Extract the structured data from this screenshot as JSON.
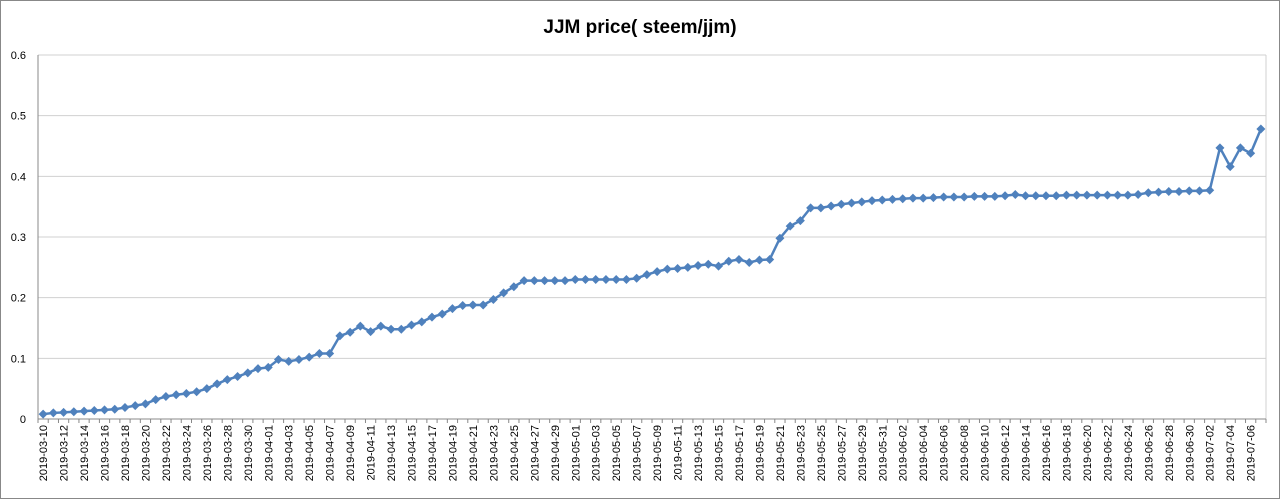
{
  "chart_data": {
    "type": "line",
    "title": "JJM price( steem/jjm)",
    "categories": [
      "2019-03-10",
      null,
      "2019-03-12",
      null,
      "2019-03-14",
      null,
      "2019-03-16",
      null,
      "2019-03-18",
      null,
      "2019-03-20",
      null,
      "2019-03-22",
      null,
      "2019-03-24",
      null,
      "2019-03-26",
      null,
      "2019-03-28",
      null,
      "2019-03-30",
      null,
      "2019-04-01",
      null,
      "2019-04-03",
      null,
      "2019-04-05",
      null,
      "2019-04-07",
      null,
      "2019-04-09",
      null,
      "2019-04-11",
      null,
      "2019-04-13",
      null,
      "2019-04-15",
      null,
      "2019-04-17",
      null,
      "2019-04-19",
      null,
      "2019-04-21",
      null,
      "2019-04-23",
      null,
      "2019-04-25",
      null,
      "2019-04-27",
      null,
      "2019-04-29",
      null,
      "2019-05-01",
      null,
      "2019-05-03",
      null,
      "2019-05-05",
      null,
      "2019-05-07",
      null,
      "2019-05-09",
      null,
      "2019-05-11",
      null,
      "2019-05-13",
      null,
      "2019-05-15",
      null,
      "2019-05-17",
      null,
      "2019-05-19",
      null,
      "2019-05-21",
      null,
      "2019-05-23",
      null,
      "2019-05-25",
      null,
      "2019-05-27",
      null,
      "2019-05-29",
      null,
      "2019-05-31",
      null,
      "2019-06-02",
      null,
      "2019-06-04",
      null,
      "2019-06-06",
      null,
      "2019-06-08",
      null,
      "2019-06-10",
      null,
      "2019-06-12",
      null,
      "2019-06-14",
      null,
      "2019-06-16",
      null,
      "2019-06-18",
      null,
      "2019-06-20",
      null,
      "2019-06-22",
      null,
      "2019-06-24",
      null,
      "2019-06-26",
      null,
      "2019-06-28",
      null,
      "2019-06-30",
      null,
      "2019-07-02",
      null,
      "2019-07-04",
      null,
      "2019-07-06",
      null
    ],
    "values": [
      0.008,
      0.01,
      0.011,
      0.012,
      0.013,
      0.014,
      0.015,
      0.016,
      0.019,
      0.022,
      0.025,
      0.032,
      0.037,
      0.04,
      0.042,
      0.045,
      0.05,
      0.058,
      0.065,
      0.07,
      0.076,
      0.083,
      0.085,
      0.098,
      0.095,
      0.098,
      0.102,
      0.108,
      0.108,
      0.137,
      0.143,
      0.153,
      0.144,
      0.153,
      0.148,
      0.148,
      0.155,
      0.16,
      0.168,
      0.173,
      0.182,
      0.187,
      0.188,
      0.188,
      0.197,
      0.208,
      0.218,
      0.228,
      0.228,
      0.228,
      0.228,
      0.228,
      0.23,
      0.23,
      0.23,
      0.23,
      0.23,
      0.23,
      0.232,
      0.238,
      0.243,
      0.247,
      0.248,
      0.25,
      0.253,
      0.255,
      0.252,
      0.26,
      0.263,
      0.258,
      0.262,
      0.263,
      0.298,
      0.318,
      0.327,
      0.348,
      0.348,
      0.351,
      0.354,
      0.356,
      0.358,
      0.36,
      0.361,
      0.362,
      0.363,
      0.364,
      0.364,
      0.365,
      0.366,
      0.366,
      0.366,
      0.367,
      0.367,
      0.367,
      0.368,
      0.37,
      0.368,
      0.368,
      0.368,
      0.368,
      0.369,
      0.369,
      0.369,
      0.369,
      0.369,
      0.369,
      0.369,
      0.37,
      0.373,
      0.374,
      0.375,
      0.375,
      0.376,
      0.376,
      0.377,
      0.447,
      0.416,
      0.447,
      0.438,
      0.478
    ],
    "color": "#4f81bd",
    "ylim": [
      0,
      0.6
    ],
    "yticks": [
      0,
      0.1,
      0.2,
      0.3,
      0.4,
      0.5,
      0.6
    ],
    "grid": true
  }
}
